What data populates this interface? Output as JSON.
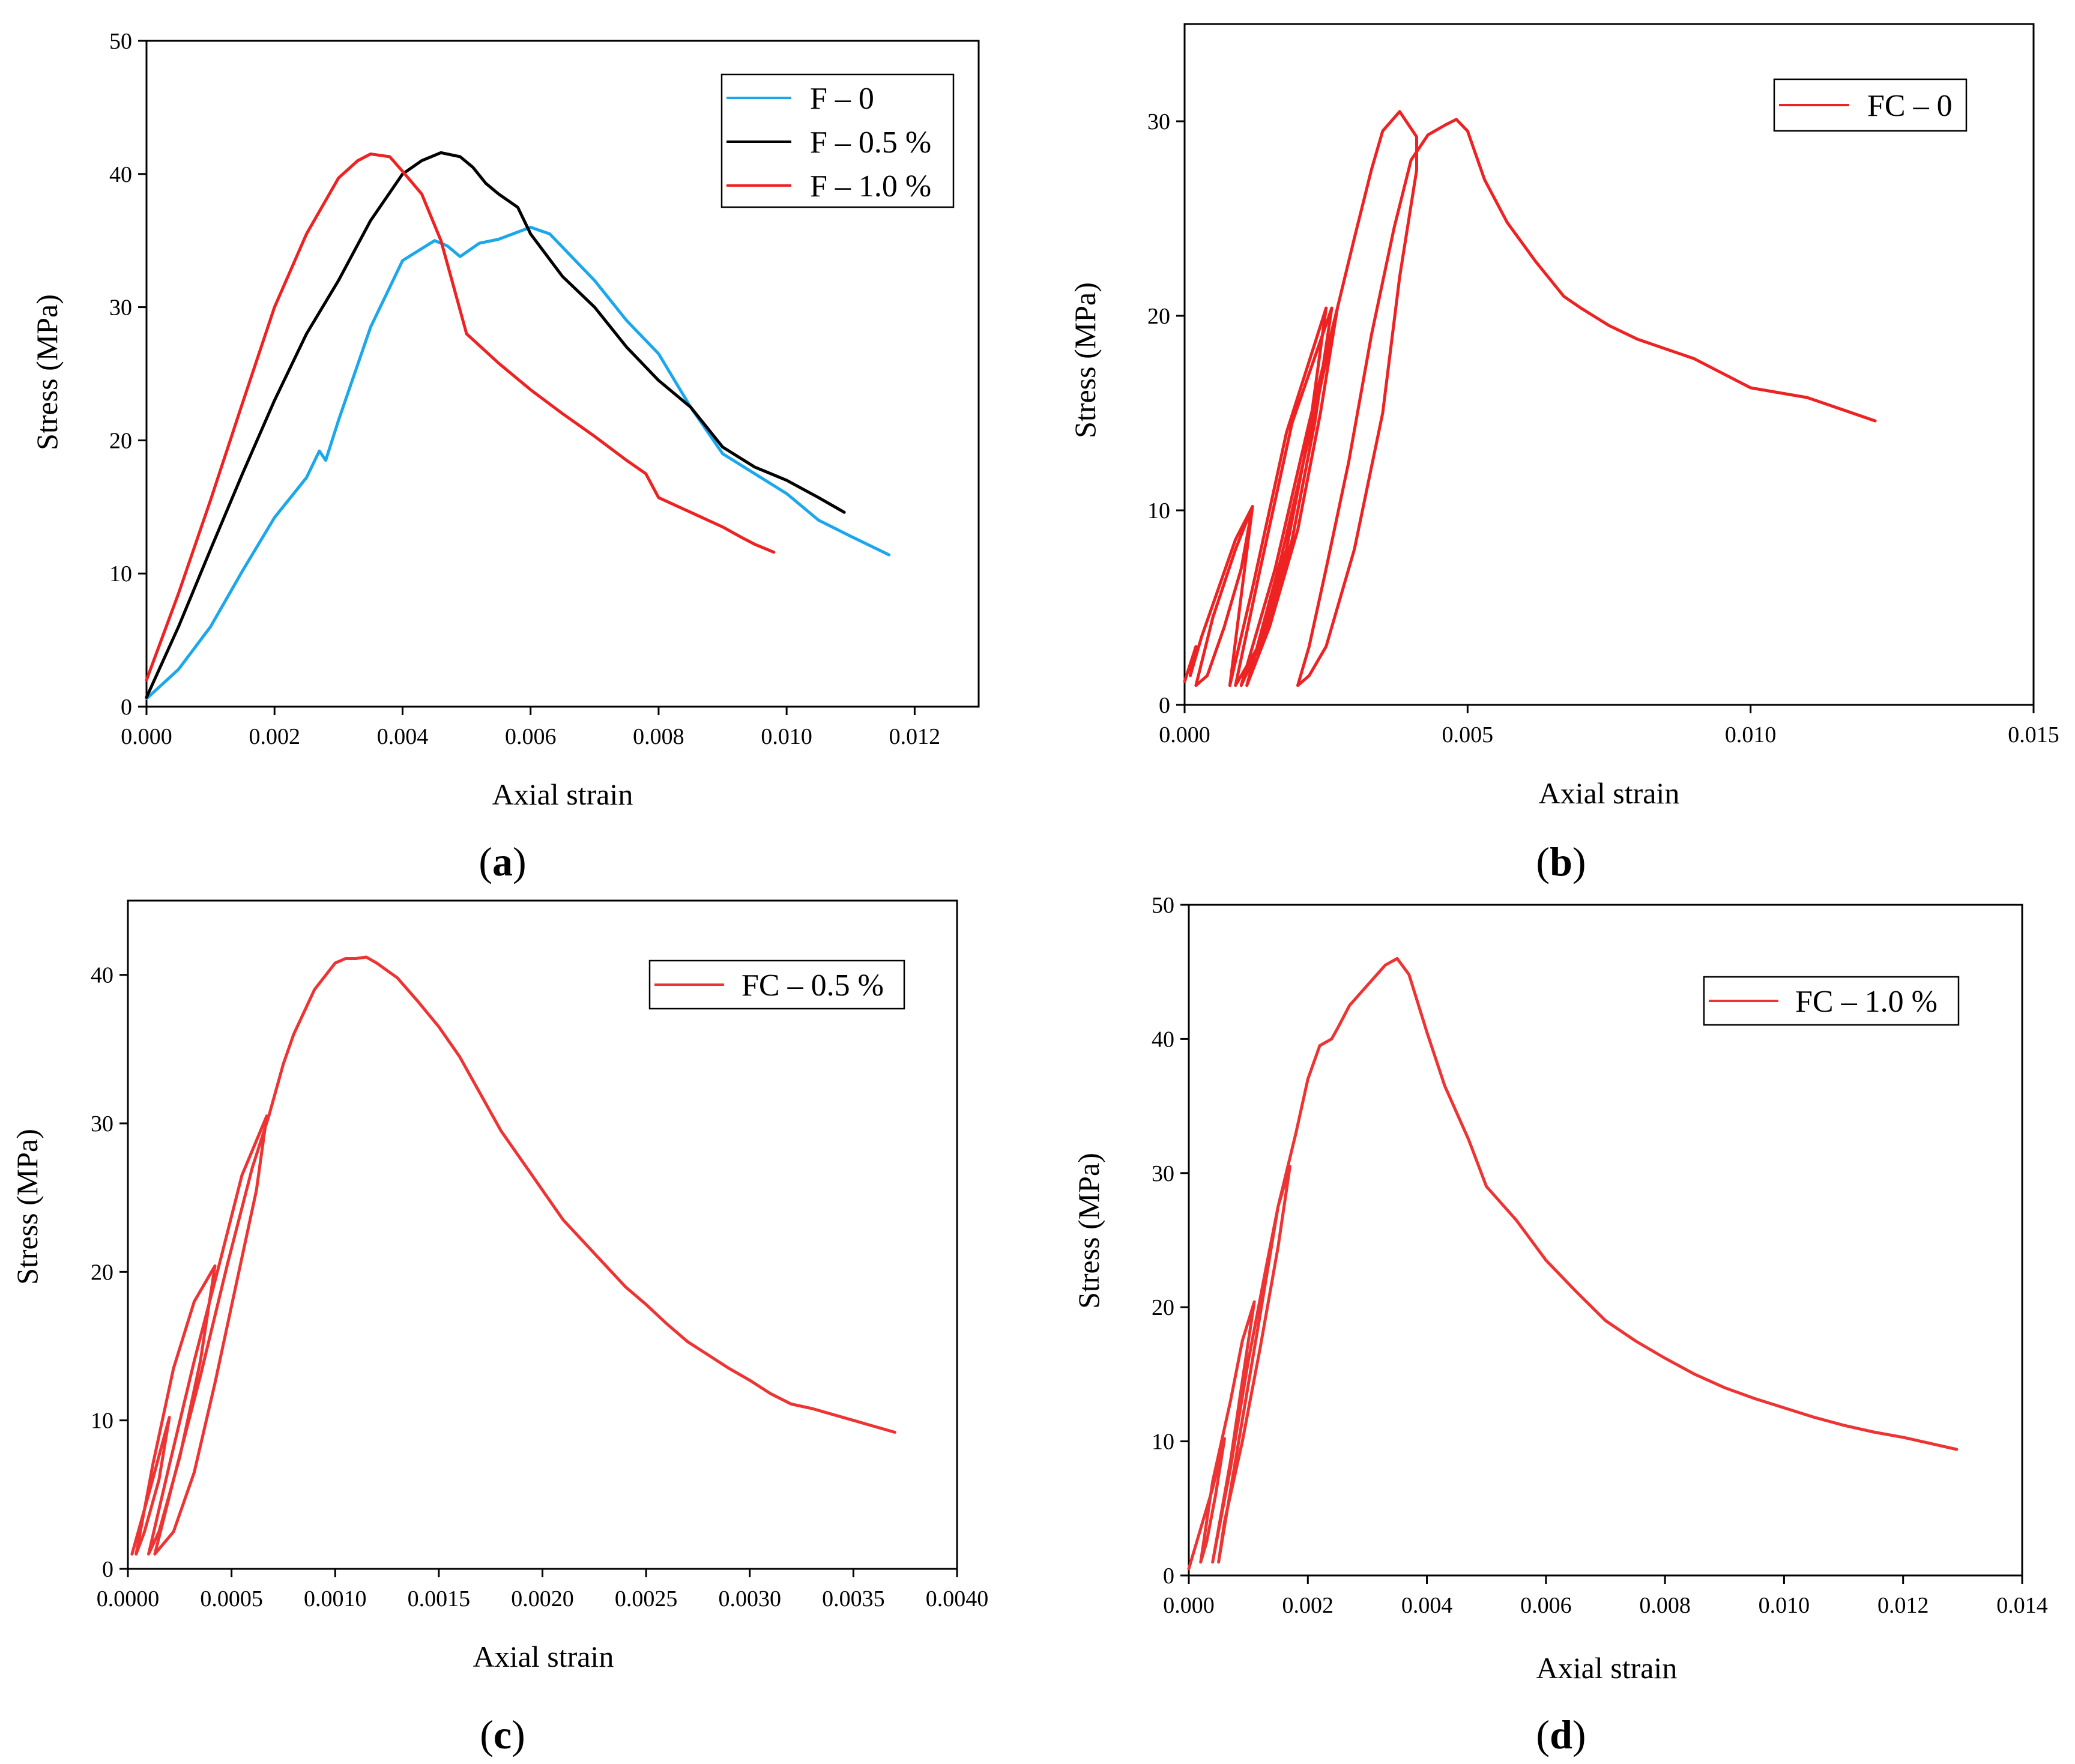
{
  "chart_data": [
    {
      "panel": "a",
      "type": "line",
      "caption_letter": "a",
      "xlabel": "Axial strain",
      "ylabel": "Stress (MPa)",
      "xlim": [
        0,
        0.013
      ],
      "ylim": [
        0,
        50
      ],
      "xticks": [
        0,
        0.002,
        0.004,
        0.006,
        0.008,
        0.01,
        0.012
      ],
      "xtick_labels": [
        "0.000",
        "0.002",
        "0.004",
        "0.006",
        "0.008",
        "0.010",
        "0.012"
      ],
      "yticks": [
        0,
        10,
        20,
        30,
        40,
        50
      ],
      "ytick_labels": [
        "0",
        "10",
        "20",
        "30",
        "40",
        "50"
      ],
      "legend_position": "top-right",
      "series": [
        {
          "name": "F – 0",
          "color": "#1aa7ec",
          "x": [
            0,
            0.0005,
            0.001,
            0.0015,
            0.002,
            0.0025,
            0.0027,
            0.0028,
            0.003,
            0.0035,
            0.004,
            0.0045,
            0.0047,
            0.0049,
            0.0052,
            0.0055,
            0.006,
            0.0063,
            0.0067,
            0.007,
            0.0075,
            0.0078,
            0.008,
            0.0085,
            0.009,
            0.0095,
            0.01,
            0.0105,
            0.011,
            0.0116
          ],
          "y": [
            0.6,
            2.8,
            6.0,
            10.2,
            14.2,
            17.2,
            19.2,
            18.5,
            21.5,
            28.5,
            33.5,
            35.0,
            34.6,
            33.8,
            34.8,
            35.1,
            36.0,
            35.5,
            33.5,
            32.0,
            29.0,
            27.5,
            26.5,
            22.5,
            19.0,
            17.5,
            16.0,
            14.0,
            12.8,
            11.4
          ]
        },
        {
          "name": "F – 0.5 %",
          "color": "#000000",
          "x": [
            0,
            0.0005,
            0.001,
            0.0015,
            0.002,
            0.0025,
            0.003,
            0.0035,
            0.004,
            0.0043,
            0.0046,
            0.0049,
            0.0051,
            0.0053,
            0.0055,
            0.0058,
            0.006,
            0.0065,
            0.007,
            0.0075,
            0.008,
            0.0085,
            0.009,
            0.0095,
            0.01,
            0.0105,
            0.0109
          ],
          "y": [
            0.7,
            6.0,
            11.8,
            17.5,
            23.0,
            28.0,
            32.0,
            36.5,
            40.0,
            41.0,
            41.6,
            41.3,
            40.5,
            39.3,
            38.5,
            37.5,
            35.5,
            32.3,
            30.0,
            27.0,
            24.5,
            22.5,
            19.5,
            18.0,
            17.0,
            15.7,
            14.6
          ]
        },
        {
          "name": "F – 1.0 %",
          "color": "#ee2222",
          "x": [
            0,
            0.0005,
            0.001,
            0.0015,
            0.002,
            0.0025,
            0.003,
            0.0033,
            0.0035,
            0.0038,
            0.004,
            0.0043,
            0.0046,
            0.0048,
            0.005,
            0.0055,
            0.006,
            0.0065,
            0.007,
            0.0075,
            0.0078,
            0.008,
            0.0085,
            0.009,
            0.0093,
            0.0095,
            0.0098
          ],
          "y": [
            2.0,
            8.5,
            15.5,
            22.8,
            30.0,
            35.5,
            39.7,
            41.0,
            41.5,
            41.3,
            40.2,
            38.5,
            35.0,
            31.5,
            28.0,
            25.8,
            23.8,
            22.0,
            20.3,
            18.5,
            17.5,
            15.7,
            14.6,
            13.5,
            12.7,
            12.2,
            11.6
          ]
        }
      ]
    },
    {
      "panel": "b",
      "type": "line",
      "caption_letter": "b",
      "xlabel": "Axial strain",
      "ylabel": "Stress (MPa)",
      "xlim": [
        0,
        0.015
      ],
      "ylim": [
        0,
        35
      ],
      "xticks": [
        0,
        0.005,
        0.01,
        0.015
      ],
      "xtick_labels": [
        "0.000",
        "0.005",
        "0.010",
        "0.015"
      ],
      "yticks": [
        0,
        10,
        20,
        30
      ],
      "ytick_labels": [
        "0",
        "10",
        "20",
        "30"
      ],
      "legend_position": "top-right",
      "series": [
        {
          "name": "FC – 0",
          "color": "#ee2222",
          "x": [
            0.0,
            0.0002,
            0.0001,
            0.0003,
            0.0006,
            0.0009,
            0.0012,
            0.001,
            0.0007,
            0.0004,
            0.0002,
            0.0005,
            0.0009,
            0.0012,
            0.0008,
            0.0012,
            0.0018,
            0.0025,
            0.0022,
            0.0018,
            0.0013,
            0.0009,
            0.0013,
            0.0019,
            0.0026,
            0.0023,
            0.0019,
            0.0014,
            0.001,
            0.0016,
            0.0022,
            0.0027,
            0.0024,
            0.002,
            0.0015,
            0.0011,
            0.0017,
            0.0023,
            0.0027,
            0.003,
            0.0033,
            0.0035,
            0.0038,
            0.0041,
            0.0041,
            0.0038,
            0.0035,
            0.003,
            0.0025,
            0.0022,
            0.002,
            0.0022,
            0.0025,
            0.0029,
            0.0033,
            0.0037,
            0.004,
            0.0043,
            0.0046,
            0.0048,
            0.005,
            0.0053,
            0.0057,
            0.0062,
            0.0067,
            0.007,
            0.0075,
            0.008,
            0.009,
            0.01,
            0.011,
            0.0122
          ],
          "y": [
            1.2,
            3.0,
            1.5,
            3.5,
            6.0,
            8.5,
            10.2,
            7.0,
            4.0,
            1.5,
            1.0,
            4.5,
            8.0,
            10.2,
            1.0,
            6.0,
            14.0,
            20.4,
            14.0,
            8.0,
            3.0,
            1.0,
            6.5,
            14.5,
            20.4,
            14.5,
            8.5,
            3.5,
            1.0,
            7.0,
            14.5,
            20.4,
            15.0,
            9.0,
            4.0,
            1.0,
            7.5,
            15.0,
            20.4,
            24.0,
            27.5,
            29.5,
            30.5,
            29.2,
            27.5,
            22.0,
            15.0,
            8.0,
            3.0,
            1.5,
            1.0,
            3.0,
            7.0,
            12.5,
            19.0,
            24.5,
            28.0,
            29.3,
            29.8,
            30.1,
            29.5,
            27.0,
            24.8,
            22.8,
            21.0,
            20.4,
            19.5,
            18.8,
            17.8,
            16.3,
            15.8,
            14.6
          ]
        }
      ]
    },
    {
      "panel": "c",
      "type": "line",
      "caption_letter": "c",
      "xlabel": "Axial strain",
      "ylabel": "Stress (MPa)",
      "xlim": [
        0,
        0.004
      ],
      "ylim": [
        0,
        45
      ],
      "xticks": [
        0,
        0.0005,
        0.001,
        0.0015,
        0.002,
        0.0025,
        0.003,
        0.0035,
        0.004
      ],
      "xtick_labels": [
        "0.0000",
        "0.0005",
        "0.0010",
        "0.0015",
        "0.0020",
        "0.0025",
        "0.0030",
        "0.0035",
        "0.0040"
      ],
      "yticks": [
        0,
        10,
        20,
        30,
        40
      ],
      "ytick_labels": [
        "0",
        "10",
        "20",
        "30",
        "40"
      ],
      "legend_position": "top-right",
      "series": [
        {
          "name": "FC – 0.5 %",
          "color": "#ee3333",
          "x": [
            2e-05,
            0.0001,
            0.0002,
            0.00015,
            8e-05,
            4e-05,
            0.00012,
            0.00022,
            0.00032,
            0.00042,
            0.00035,
            0.00025,
            0.00015,
            0.0001,
            0.0002,
            0.00032,
            0.00045,
            0.00055,
            0.00067,
            0.00062,
            0.00052,
            0.00042,
            0.00032,
            0.00022,
            0.00013,
            0.00022,
            0.00035,
            0.00048,
            0.0006,
            0.00068,
            0.00075,
            0.0008,
            0.0009,
            0.001,
            0.00105,
            0.0011,
            0.00115,
            0.0012,
            0.0013,
            0.0014,
            0.0015,
            0.0016,
            0.0017,
            0.0018,
            0.0019,
            0.002,
            0.0021,
            0.0022,
            0.0023,
            0.0024,
            0.0025,
            0.0026,
            0.0027,
            0.0028,
            0.0029,
            0.003,
            0.0031,
            0.0032,
            0.0033,
            0.0034,
            0.0035,
            0.0036,
            0.0037
          ],
          "y": [
            1.0,
            5.0,
            10.2,
            6.0,
            2.5,
            1.0,
            7.0,
            13.5,
            18.0,
            20.4,
            14.0,
            7.5,
            2.5,
            1.0,
            7.0,
            14.0,
            21.0,
            26.5,
            30.5,
            25.5,
            19.0,
            12.5,
            6.5,
            2.5,
            1.0,
            6.0,
            13.0,
            20.5,
            27.0,
            30.5,
            34.0,
            36.0,
            39.0,
            40.8,
            41.1,
            41.1,
            41.2,
            40.8,
            39.8,
            38.2,
            36.5,
            34.5,
            32.0,
            29.5,
            27.5,
            25.5,
            23.5,
            22.0,
            20.5,
            19.0,
            17.8,
            16.5,
            15.3,
            14.4,
            13.5,
            12.7,
            11.8,
            11.1,
            10.8,
            10.4,
            10.0,
            9.6,
            9.2
          ]
        }
      ]
    },
    {
      "panel": "d",
      "type": "line",
      "caption_letter": "d",
      "xlabel": "Axial strain",
      "ylabel": "Stress (MPa)",
      "xlim": [
        0,
        0.014
      ],
      "ylim": [
        0,
        50
      ],
      "xticks": [
        0,
        0.002,
        0.004,
        0.006,
        0.008,
        0.01,
        0.012,
        0.014
      ],
      "xtick_labels": [
        "0.000",
        "0.002",
        "0.004",
        "0.006",
        "0.008",
        "0.010",
        "0.012",
        "0.014"
      ],
      "yticks": [
        0,
        10,
        20,
        30,
        40,
        50
      ],
      "ytick_labels": [
        "0",
        "10",
        "20",
        "30",
        "40",
        "50"
      ],
      "legend_position": "top-right",
      "series": [
        {
          "name": "FC – 1.0 %",
          "color": "#ee3333",
          "x": [
            0.0,
            0.0002,
            0.0004,
            0.0006,
            0.00045,
            0.0003,
            0.0002,
            0.0004,
            0.0007,
            0.0009,
            0.0011,
            0.0009,
            0.0007,
            0.0005,
            0.0004,
            0.0007,
            0.001,
            0.0013,
            0.0015,
            0.0017,
            0.0015,
            0.0012,
            0.0009,
            0.0006,
            0.0005,
            0.0008,
            0.0012,
            0.0015,
            0.0018,
            0.002,
            0.0022,
            0.0024,
            0.0025,
            0.0027,
            0.003,
            0.0033,
            0.0035,
            0.0037,
            0.004,
            0.0043,
            0.0047,
            0.005,
            0.0055,
            0.006,
            0.0065,
            0.007,
            0.0075,
            0.008,
            0.0085,
            0.009,
            0.0095,
            0.01,
            0.0105,
            0.011,
            0.0115,
            0.012,
            0.0125,
            0.0129
          ],
          "y": [
            0.5,
            3.5,
            6.5,
            10.2,
            6.0,
            2.5,
            1.0,
            7.0,
            13.0,
            17.5,
            20.4,
            14.5,
            8.5,
            3.5,
            1.0,
            8.0,
            16.0,
            23.0,
            27.5,
            30.5,
            24.5,
            17.0,
            10.0,
            4.0,
            1.0,
            9.0,
            19.5,
            27.5,
            33.0,
            37.0,
            39.5,
            40.0,
            40.8,
            42.5,
            44.0,
            45.5,
            46.0,
            44.8,
            40.5,
            36.5,
            32.5,
            29.0,
            26.5,
            23.5,
            21.2,
            19.0,
            17.5,
            16.2,
            15.0,
            14.0,
            13.2,
            12.5,
            11.8,
            11.2,
            10.7,
            10.3,
            9.8,
            9.4
          ]
        }
      ]
    }
  ]
}
